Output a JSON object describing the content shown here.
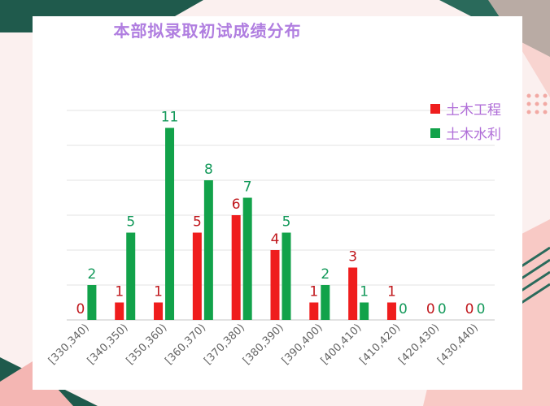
{
  "colors": {
    "series_red": "#ef1d1d",
    "series_green": "#12a24a",
    "label_red": "#c0181d",
    "label_green": "#13995a",
    "title": "#b07ee0",
    "legend_text": "#b06ed8",
    "grid": "#e3e3e3",
    "axis": "#d0d0d0",
    "deco_dark": "#1f5a4c",
    "deco_pink": "#f4b6b3"
  },
  "chart_data": {
    "type": "bar",
    "title": "本部拟录取初试成绩分布",
    "categories": [
      "[330,340)",
      "[340,350)",
      "[350,360)",
      "[360,370)",
      "[370,380)",
      "[380,390)",
      "[390,400)",
      "[400,410)",
      "[410,420)",
      "[420,430)",
      "[430,440)"
    ],
    "series": [
      {
        "name": "土木工程",
        "values": [
          0,
          1,
          1,
          5,
          6,
          4,
          1,
          3,
          1,
          0,
          0
        ]
      },
      {
        "name": "土木水利",
        "values": [
          2,
          5,
          11,
          8,
          7,
          5,
          2,
          1,
          0,
          0,
          0
        ]
      }
    ],
    "ylim": [
      0,
      12
    ],
    "grid": true,
    "legend": "top-right",
    "xlabel": "",
    "ylabel": ""
  }
}
